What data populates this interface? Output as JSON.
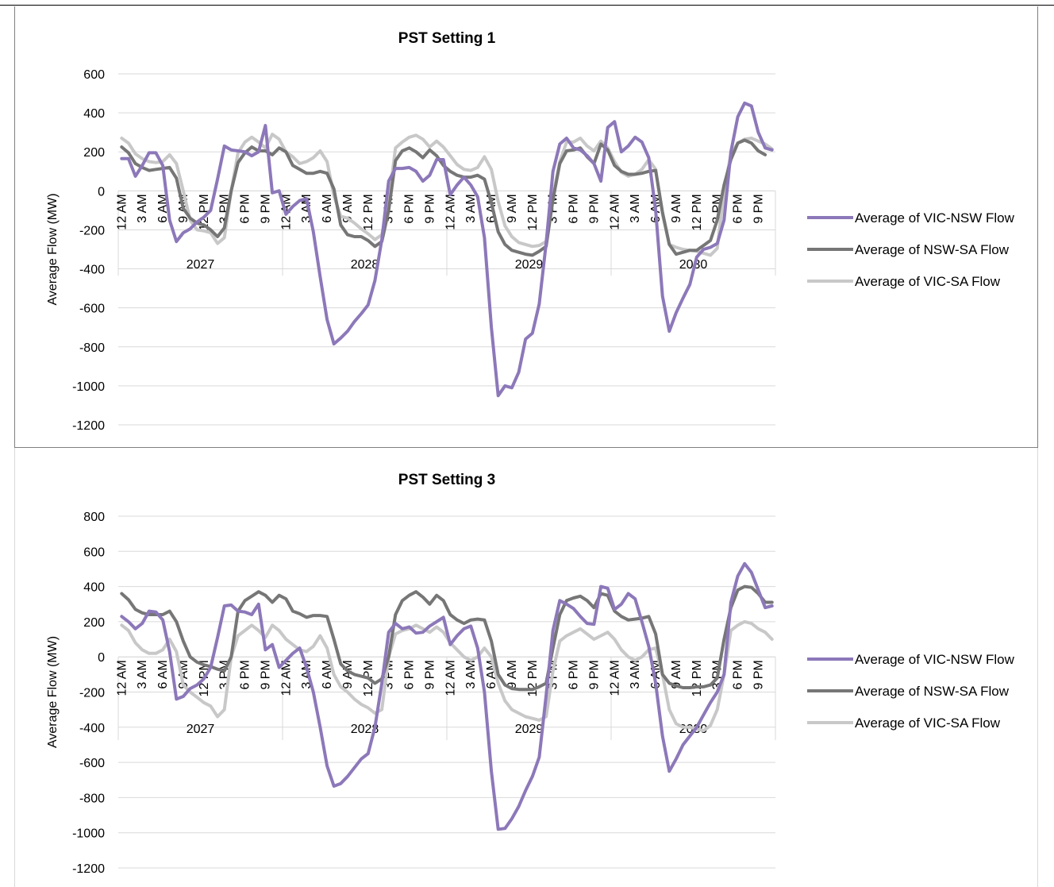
{
  "chart_data": [
    {
      "type": "line",
      "title": "PST Setting 1",
      "ylabel": "Average Flow (MW)",
      "xlabel": "",
      "ylim": [
        -1200,
        600
      ],
      "yticks": [
        600,
        400,
        200,
        0,
        -200,
        -400,
        -600,
        -800,
        -1000,
        -1200
      ],
      "grid": true,
      "legend_position": "right",
      "hour_labels": [
        "12 AM",
        "3 AM",
        "6 AM",
        "9 AM",
        "12 PM",
        "3 PM",
        "6 PM",
        "9 PM"
      ],
      "years": [
        "2027",
        "2028",
        "2029",
        "2030"
      ],
      "series": [
        {
          "name": "Average of VIC-NSW Flow",
          "color": "#8c78b9",
          "values": [
            165,
            165,
            75,
            130,
            195,
            195,
            130,
            -150,
            -260,
            -215,
            -195,
            -160,
            -135,
            -100,
            60,
            230,
            210,
            205,
            200,
            180,
            200,
            335,
            -10,
            0,
            -120,
            -80,
            -50,
            -40,
            -210,
            -440,
            -660,
            -785,
            -755,
            -720,
            -670,
            -630,
            -585,
            -460,
            -250,
            50,
            115,
            115,
            120,
            100,
            50,
            80,
            160,
            160,
            -20,
            30,
            70,
            30,
            -30,
            -240,
            -700,
            -1050,
            -1000,
            -1010,
            -930,
            -760,
            -730,
            -580,
            -270,
            100,
            240,
            270,
            220,
            210,
            180,
            140,
            50,
            325,
            355,
            200,
            230,
            275,
            250,
            170,
            -100,
            -540,
            -720,
            -625,
            -550,
            -480,
            -340,
            -300,
            -290,
            -270,
            -150,
            200,
            380,
            450,
            435,
            300,
            220,
            210
          ]
        },
        {
          "name": "Average of NSW-SA Flow",
          "color": "#767676",
          "values": [
            225,
            195,
            140,
            120,
            105,
            110,
            115,
            120,
            65,
            -90,
            -140,
            -165,
            -175,
            -200,
            -235,
            -190,
            0,
            145,
            195,
            225,
            205,
            205,
            185,
            220,
            200,
            130,
            110,
            90,
            90,
            100,
            90,
            10,
            -175,
            -225,
            -235,
            -235,
            -255,
            -285,
            -260,
            -100,
            155,
            205,
            220,
            200,
            170,
            210,
            180,
            130,
            100,
            80,
            70,
            70,
            80,
            60,
            -60,
            -210,
            -275,
            -305,
            -315,
            -325,
            -330,
            -310,
            -285,
            -45,
            140,
            205,
            210,
            220,
            175,
            140,
            240,
            210,
            130,
            100,
            85,
            85,
            90,
            100,
            105,
            -110,
            -275,
            -325,
            -315,
            -305,
            -305,
            -280,
            -255,
            -150,
            30,
            160,
            245,
            260,
            245,
            205,
            185
          ]
        },
        {
          "name": "Average of VIC-SA Flow",
          "color": "#c8c8c8",
          "values": [
            270,
            245,
            190,
            165,
            150,
            145,
            150,
            185,
            140,
            0,
            -150,
            -200,
            -205,
            -215,
            -270,
            -240,
            0,
            195,
            250,
            275,
            250,
            220,
            290,
            265,
            200,
            175,
            140,
            150,
            170,
            205,
            150,
            -25,
            -130,
            -140,
            -165,
            -195,
            -220,
            -250,
            -225,
            -60,
            220,
            250,
            275,
            285,
            265,
            225,
            255,
            225,
            180,
            135,
            110,
            105,
            120,
            175,
            110,
            -55,
            -180,
            -235,
            -265,
            -275,
            -285,
            -280,
            -260,
            -25,
            150,
            250,
            250,
            270,
            230,
            205,
            255,
            220,
            150,
            95,
            75,
            85,
            110,
            160,
            110,
            -120,
            -275,
            -290,
            -300,
            -305,
            -310,
            -320,
            -330,
            -295,
            0,
            190,
            245,
            265,
            270,
            255,
            240,
            215
          ]
        }
      ]
    },
    {
      "type": "line",
      "title": "PST Setting 3",
      "ylabel": "Average Flow (MW)",
      "xlabel": "",
      "ylim": [
        -1200,
        800
      ],
      "yticks": [
        800,
        600,
        400,
        200,
        0,
        -200,
        -400,
        -600,
        -800,
        -1000,
        -1200
      ],
      "grid": true,
      "legend_position": "right",
      "hour_labels": [
        "12 AM",
        "3 AM",
        "6 AM",
        "9 AM",
        "12 PM",
        "3 PM",
        "6 PM",
        "9 PM"
      ],
      "years": [
        "2027",
        "2028",
        "2029",
        "2030"
      ],
      "series": [
        {
          "name": "Average of VIC-NSW Flow",
          "color": "#8c78b9",
          "values": [
            230,
            200,
            160,
            190,
            260,
            255,
            210,
            30,
            -240,
            -225,
            -180,
            -160,
            -125,
            -60,
            110,
            290,
            295,
            260,
            255,
            240,
            300,
            40,
            70,
            -60,
            -20,
            20,
            50,
            -60,
            -200,
            -400,
            -620,
            -735,
            -720,
            -680,
            -630,
            -580,
            -550,
            -400,
            -150,
            140,
            190,
            160,
            170,
            135,
            140,
            175,
            200,
            225,
            70,
            120,
            160,
            175,
            50,
            -200,
            -650,
            -980,
            -975,
            -920,
            -850,
            -760,
            -680,
            -570,
            -220,
            150,
            320,
            300,
            275,
            230,
            190,
            185,
            400,
            390,
            270,
            300,
            360,
            330,
            200,
            60,
            -150,
            -450,
            -650,
            -580,
            -500,
            -450,
            -400,
            -330,
            -260,
            -200,
            -100,
            310,
            460,
            530,
            480,
            380,
            280,
            290
          ]
        },
        {
          "name": "Average of NSW-SA Flow",
          "color": "#767676",
          "values": [
            360,
            325,
            270,
            250,
            240,
            240,
            240,
            260,
            200,
            90,
            0,
            -30,
            -45,
            -55,
            -70,
            -80,
            0,
            260,
            320,
            345,
            370,
            350,
            310,
            350,
            330,
            260,
            245,
            225,
            235,
            235,
            230,
            100,
            -40,
            -80,
            -100,
            -110,
            -120,
            -150,
            -125,
            0,
            240,
            320,
            350,
            370,
            340,
            300,
            350,
            320,
            240,
            210,
            190,
            210,
            215,
            210,
            90,
            -100,
            -160,
            -180,
            -185,
            -185,
            -185,
            -170,
            -150,
            50,
            240,
            320,
            335,
            345,
            320,
            280,
            360,
            350,
            260,
            230,
            210,
            215,
            220,
            230,
            130,
            -100,
            -150,
            -165,
            -175,
            -175,
            -170,
            -170,
            -160,
            -120,
            100,
            280,
            380,
            400,
            395,
            360,
            310,
            310
          ]
        },
        {
          "name": "Average of VIC-SA Flow",
          "color": "#c8c8c8",
          "values": [
            180,
            150,
            80,
            40,
            20,
            20,
            40,
            100,
            30,
            -160,
            -200,
            -230,
            -260,
            -280,
            -340,
            -300,
            0,
            120,
            150,
            180,
            150,
            110,
            180,
            150,
            100,
            70,
            40,
            30,
            60,
            120,
            50,
            -100,
            -170,
            -200,
            -240,
            -270,
            -290,
            -320,
            -300,
            0,
            130,
            150,
            160,
            180,
            160,
            140,
            170,
            140,
            80,
            40,
            0,
            -20,
            0,
            50,
            0,
            -150,
            -250,
            -300,
            -320,
            -340,
            -350,
            -360,
            -340,
            -80,
            90,
            120,
            140,
            160,
            130,
            100,
            120,
            140,
            100,
            40,
            0,
            -20,
            0,
            40,
            50,
            -100,
            -300,
            -380,
            -400,
            -400,
            -410,
            -420,
            -390,
            -300,
            -100,
            150,
            180,
            200,
            190,
            160,
            140,
            100
          ]
        }
      ]
    }
  ]
}
